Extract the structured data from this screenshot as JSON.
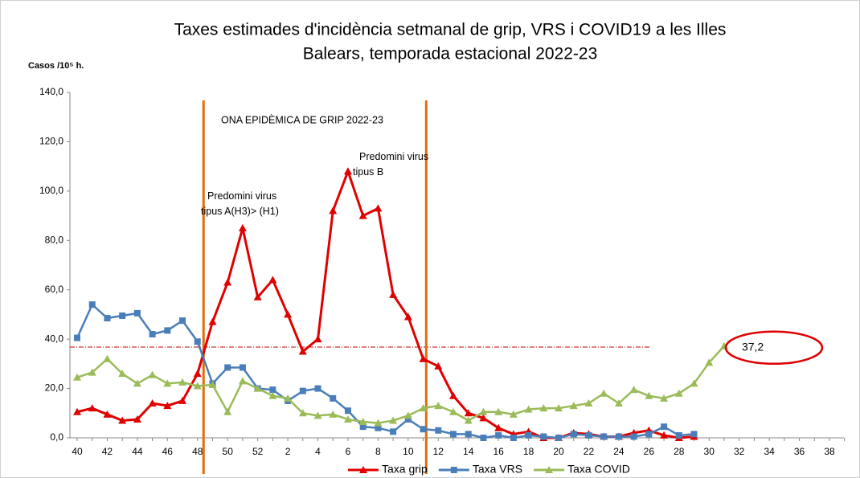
{
  "chart_data": {
    "type": "line",
    "title": [
      "Taxes estimades d'incidència setmanal de grip, VRS i COVID19 a les Illes",
      "Balears, temporada estacional 2022-23"
    ],
    "y_label": "Casos /10⁵ h.",
    "annotations": [
      "ONA EPIDÈMICA DE GRIP 2022-23",
      "Predomini virus tipus A(H3)> (H1)",
      "Predomini virus tipus B"
    ],
    "categories": [
      "40",
      null,
      "42",
      null,
      "44",
      null,
      "46",
      null,
      "48",
      null,
      "50",
      null,
      "52",
      null,
      "2",
      null,
      "4",
      null,
      "6",
      null,
      "8",
      null,
      "10",
      null,
      "12",
      null,
      "14",
      null,
      "16",
      null,
      "18",
      null,
      "20",
      null,
      "22",
      null,
      "24",
      null,
      "26",
      null,
      "28",
      null,
      "30",
      null,
      "32",
      null,
      "34",
      null,
      "36",
      null,
      "38",
      null
    ],
    "ylim": [
      0,
      140
    ],
    "yticks": [
      {
        "value": 0,
        "label": "0,0"
      },
      {
        "value": 20,
        "label": "20,0"
      },
      {
        "value": 40,
        "label": "40,0"
      },
      {
        "value": 60,
        "label": "60,0"
      },
      {
        "value": 80,
        "label": "80,0"
      },
      {
        "value": 100,
        "label": "100,0"
      },
      {
        "value": 120,
        "label": "120,0"
      },
      {
        "value": 140,
        "label": "140,0"
      }
    ],
    "threshold": {
      "value": 36.8,
      "color": "#c00000"
    },
    "epidemic_lines": {
      "values": [
        8.4,
        23.2
      ],
      "color": "#e46c0a"
    },
    "series": [
      {
        "name": "Taxa grip",
        "color": "#e00000",
        "marker": "triangle",
        "values": [
          10.5,
          12,
          9.5,
          7,
          7.5,
          14,
          13,
          15,
          26,
          47,
          63,
          85,
          57,
          64,
          50,
          35,
          40,
          92,
          108,
          90,
          93,
          58,
          49,
          32,
          29,
          17,
          10,
          8,
          4,
          1.5,
          2.5,
          0,
          0,
          2,
          1.5,
          0.5,
          0.5,
          2,
          3,
          1,
          0,
          0.5,
          null,
          null,
          null,
          null,
          null,
          null,
          null,
          null,
          null,
          null
        ]
      },
      {
        "name": "Taxa VRS",
        "color": "#4a7ebb",
        "marker": "square",
        "values": [
          40.5,
          54,
          48.5,
          49.5,
          50.5,
          42,
          43.5,
          47.5,
          39,
          22,
          28.5,
          28.5,
          20,
          19.5,
          15,
          19,
          20,
          16,
          11,
          4.5,
          4,
          2.5,
          7.5,
          3.5,
          3,
          1.5,
          1.5,
          0,
          1,
          0,
          1,
          0.5,
          0,
          1.5,
          1,
          0.5,
          0.5,
          0.5,
          1.5,
          4.5,
          1,
          1.5,
          null,
          null,
          null,
          null,
          null,
          null,
          null,
          null,
          null,
          null
        ]
      },
      {
        "name": "Taxa COVID",
        "color": "#9bbb59",
        "marker": "triangle",
        "values": [
          24.5,
          26.5,
          32,
          26,
          22,
          25.5,
          22,
          22.5,
          21,
          21.5,
          10.5,
          23,
          20,
          17,
          16,
          10,
          9,
          9.5,
          7.5,
          6.5,
          6,
          7,
          9,
          12,
          13,
          10.5,
          7,
          10.5,
          10.5,
          9.5,
          11.5,
          12,
          12,
          13,
          14,
          18,
          14,
          19.5,
          17,
          16,
          18,
          22,
          30.5,
          37.2,
          null,
          null,
          null,
          null,
          null,
          null,
          null,
          null
        ],
        "value_labels": [
          null,
          null,
          null,
          null,
          null,
          null,
          null,
          null,
          null,
          null,
          null,
          null,
          null,
          null,
          null,
          null,
          null,
          null,
          null,
          null,
          null,
          null,
          null,
          null,
          null,
          null,
          null,
          null,
          null,
          null,
          null,
          null,
          null,
          null,
          null,
          null,
          null,
          null,
          null,
          null,
          null,
          null,
          null,
          "37,2",
          null,
          null,
          null,
          null,
          null,
          null,
          null,
          null
        ]
      }
    ]
  }
}
